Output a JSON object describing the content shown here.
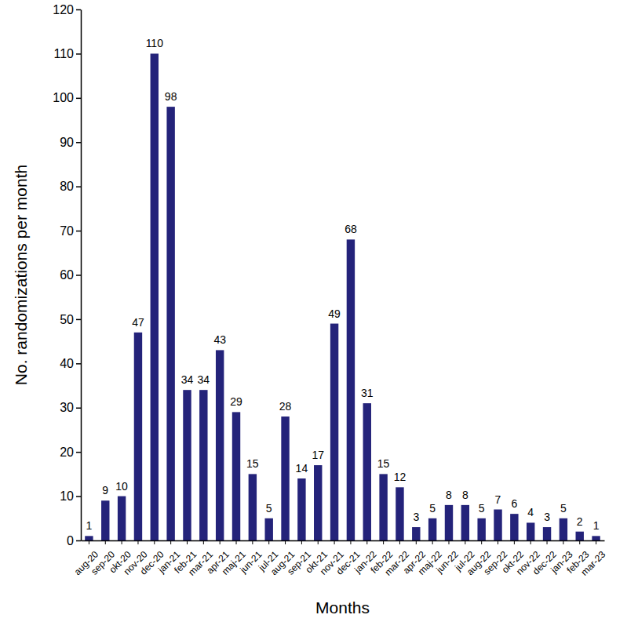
{
  "chart_data": {
    "type": "bar",
    "x_label": "Months",
    "y_label": "No. randomizations per month",
    "categories": [
      "aug-20",
      "sep-20",
      "okt-20",
      "nov-20",
      "dec-20",
      "jan-21",
      "feb-21",
      "mar-21",
      "apr-21",
      "maj-21",
      "jun-21",
      "jul-21",
      "aug-21",
      "sep-21",
      "okt-21",
      "nov-21",
      "dec-21",
      "jan-22",
      "feb-22",
      "mar-22",
      "apr-22",
      "maj-22",
      "jun-22",
      "jul-22",
      "aug-22",
      "sep-22",
      "okt-22",
      "nov-22",
      "dec-22",
      "jan-23",
      "feb-23",
      "mar-23"
    ],
    "values": [
      1,
      9,
      10,
      47,
      110,
      98,
      34,
      34,
      43,
      29,
      15,
      5,
      28,
      14,
      17,
      49,
      68,
      31,
      15,
      12,
      3,
      5,
      8,
      8,
      5,
      7,
      6,
      4,
      3,
      5,
      2,
      1
    ],
    "color": "#24237a",
    "ylim": [
      0,
      120
    ],
    "yticks": [
      0,
      10,
      20,
      30,
      40,
      50,
      60,
      70,
      80,
      90,
      100,
      110,
      120
    ],
    "grid": false,
    "data_labels": true
  }
}
